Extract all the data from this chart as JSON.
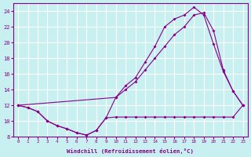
{
  "xlabel": "Windchill (Refroidissement éolien,°C)",
  "bg_color": "#c8f0f0",
  "grid_color": "#ffffff",
  "line_color": "#880088",
  "xlim": [
    -0.5,
    23.5
  ],
  "ylim": [
    8,
    25
  ],
  "yticks": [
    8,
    10,
    12,
    14,
    16,
    18,
    20,
    22,
    24
  ],
  "xticks": [
    0,
    1,
    2,
    3,
    4,
    5,
    6,
    7,
    8,
    9,
    10,
    11,
    12,
    13,
    14,
    15,
    16,
    17,
    18,
    19,
    20,
    21,
    22,
    23
  ],
  "series1_x": [
    0,
    1,
    2,
    3,
    4,
    5,
    6,
    7,
    8,
    9,
    10,
    11,
    12,
    13,
    14,
    15,
    16,
    17,
    18,
    19,
    20,
    21,
    22,
    23
  ],
  "series1_y": [
    12.0,
    11.7,
    11.2,
    10.0,
    9.4,
    9.0,
    8.5,
    8.2,
    8.8,
    10.4,
    10.5,
    10.5,
    10.5,
    10.5,
    10.5,
    10.5,
    10.5,
    10.5,
    10.5,
    10.5,
    10.5,
    10.5,
    10.5,
    12.0
  ],
  "series2_x": [
    0,
    1,
    2,
    3,
    4,
    5,
    6,
    7,
    8,
    9,
    10,
    11,
    12,
    13,
    14,
    15,
    16,
    17,
    18,
    19,
    20,
    21,
    22,
    23
  ],
  "series2_y": [
    12.0,
    11.7,
    11.2,
    10.0,
    9.4,
    9.0,
    8.5,
    8.2,
    8.8,
    10.4,
    13.0,
    14.5,
    15.5,
    17.5,
    19.5,
    22.0,
    23.0,
    23.5,
    24.5,
    23.5,
    19.8,
    16.3,
    13.8,
    12.0
  ],
  "series3_x": [
    0,
    10,
    11,
    12,
    13,
    14,
    15,
    16,
    17,
    18,
    19,
    20,
    21,
    22,
    23
  ],
  "series3_y": [
    12.0,
    13.0,
    14.0,
    15.0,
    16.5,
    18.0,
    19.5,
    21.0,
    22.0,
    23.5,
    23.8,
    21.5,
    16.5,
    13.8,
    12.0
  ]
}
